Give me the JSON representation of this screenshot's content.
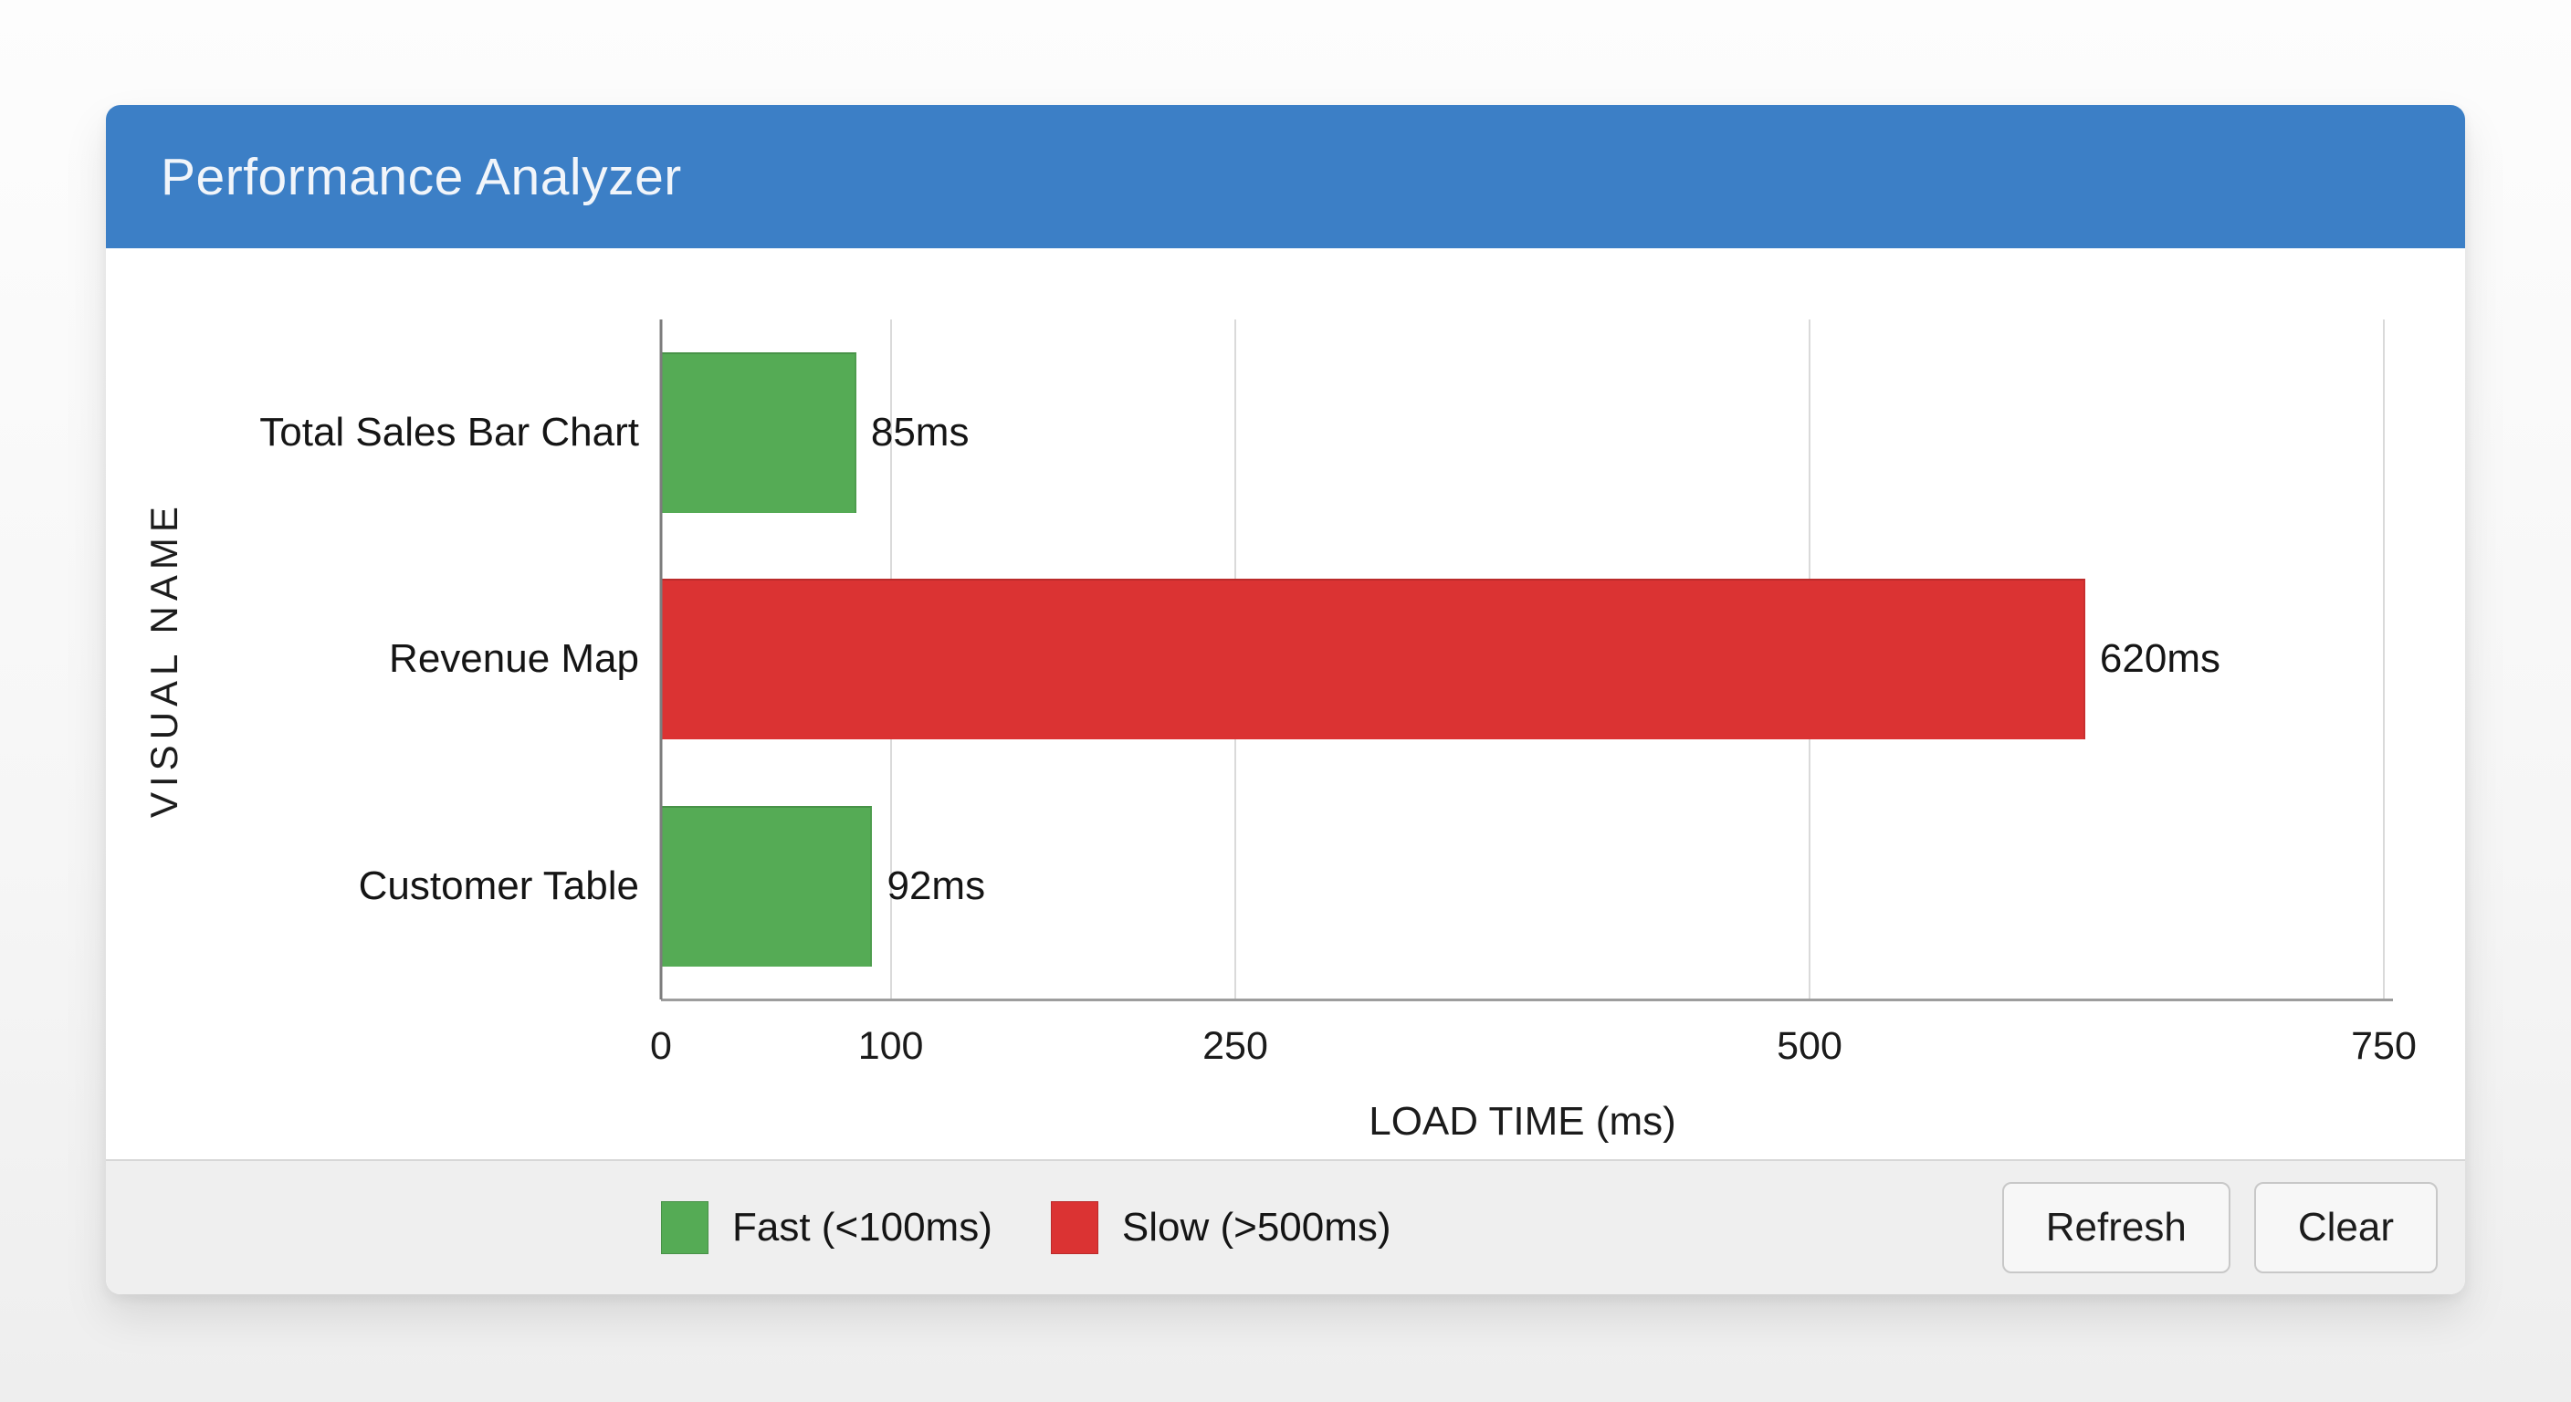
{
  "panel": {
    "title": "Performance Analyzer"
  },
  "theme": {
    "header_bg": "#3c7fc6",
    "header_text": "#f1f5fa",
    "card_bg": "#ffffff",
    "footer_bg": "#efefef",
    "fast_color": "#55ab55",
    "slow_color": "#db3333",
    "grid_color": "#dadada",
    "axis_color": "#7c7c7c"
  },
  "chart_data": {
    "type": "bar",
    "orientation": "horizontal",
    "title": "Performance Analyzer",
    "categories": [
      "Total Sales Bar Chart",
      "Revenue Map",
      "Customer Table"
    ],
    "values": [
      85,
      620,
      92
    ],
    "value_labels": [
      "85ms",
      "620ms",
      "92ms"
    ],
    "point_colors": [
      "#55ab55",
      "#db3333",
      "#55ab55"
    ],
    "xlabel": "LOAD TIME (ms)",
    "ylabel": "VISUAL NAME",
    "xlim": [
      0,
      750
    ],
    "xticks": [
      0,
      100,
      250,
      500,
      750
    ],
    "grid": true,
    "legend_position": "bottom",
    "legend": [
      {
        "label": "Fast (<100ms)",
        "color": "#55ab55"
      },
      {
        "label": "Slow (>500ms)",
        "color": "#db3333"
      }
    ]
  },
  "footer": {
    "buttons": [
      {
        "label": "Refresh"
      },
      {
        "label": "Clear"
      }
    ]
  }
}
